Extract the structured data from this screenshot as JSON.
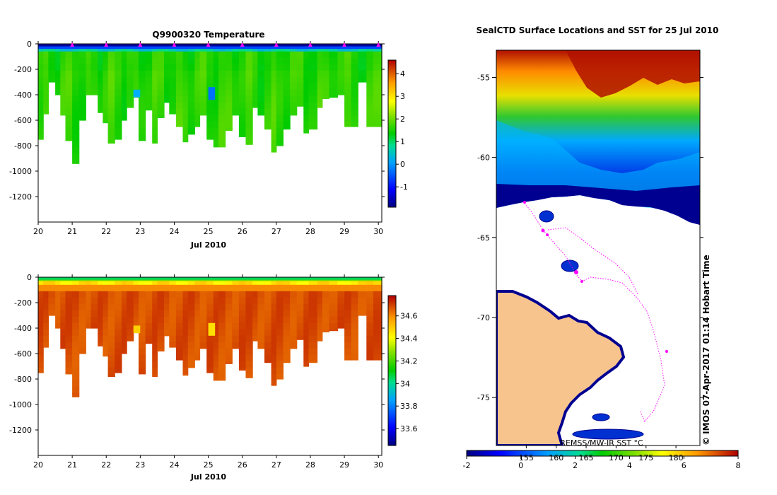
{
  "chart_data": [
    {
      "type": "heatmap",
      "title": "Q9900320  Temperature",
      "xlabel": "Jul 2010",
      "xticks": [
        "20",
        "21",
        "22",
        "23",
        "24",
        "25",
        "26",
        "27",
        "28",
        "29",
        "30"
      ],
      "xlim": [
        20,
        30.1
      ],
      "ylim": [
        -1400,
        0
      ],
      "yticks": [
        "0",
        "-200",
        "-400",
        "-600",
        "-800",
        "-1000",
        "-1200"
      ],
      "colorbar": {
        "ticks": [
          "4",
          "3",
          "2",
          "1",
          "0",
          "-1"
        ],
        "vmin": -1.9,
        "vmax": 4.6
      },
      "surface_marker_times": [
        21,
        22,
        23,
        24,
        25,
        26,
        27,
        28,
        29,
        30
      ],
      "profile_times": [
        20,
        20.15,
        20.3,
        20.5,
        20.65,
        20.8,
        21,
        21.2,
        21.4,
        21.55,
        21.75,
        21.9,
        22.05,
        22.25,
        22.45,
        22.6,
        22.8,
        22.95,
        23.15,
        23.35,
        23.5,
        23.7,
        23.85,
        24.05,
        24.25,
        24.4,
        24.6,
        24.75,
        24.95,
        25.15,
        25.3,
        25.5,
        25.7,
        25.9,
        26.1,
        26.3,
        26.45,
        26.65,
        26.85,
        27,
        27.2,
        27.4,
        27.6,
        27.8,
        27.95,
        28.2,
        28.35,
        28.55,
        28.8,
        29,
        29.2,
        29.4,
        29.65,
        29.85
      ],
      "profile_max_depth": [
        750,
        550,
        300,
        400,
        560,
        760,
        940,
        600,
        400,
        400,
        540,
        620,
        780,
        750,
        600,
        500,
        420,
        760,
        520,
        780,
        580,
        460,
        550,
        650,
        770,
        710,
        650,
        560,
        750,
        810,
        810,
        680,
        560,
        730,
        790,
        500,
        560,
        670,
        850,
        800,
        670,
        560,
        490,
        700,
        670,
        500,
        430,
        420,
        400,
        650,
        650,
        300,
        650,
        650
      ]
    },
    {
      "type": "heatmap",
      "title": "",
      "xlabel": "Jul 2010",
      "xticks": [
        "20",
        "21",
        "22",
        "23",
        "24",
        "25",
        "26",
        "27",
        "28",
        "29",
        "30"
      ],
      "xlim": [
        20,
        30.1
      ],
      "ylim": [
        -1400,
        0
      ],
      "yticks": [
        "0",
        "-200",
        "-400",
        "-600",
        "-800",
        "-1000",
        "-1200"
      ],
      "colorbar": {
        "ticks": [
          "34.6",
          "34.4",
          "34.2",
          "34",
          "33.8",
          "33.6"
        ],
        "vmin": 33.45,
        "vmax": 34.78
      }
    },
    {
      "type": "map",
      "title": "SealCTD Surface Locations and SST for 25 Jul 2010",
      "yticks": [
        "-55",
        "-60",
        "-65",
        "-70",
        "-75"
      ],
      "lat_range": [
        -53.3,
        -78
      ],
      "lon_range": [
        150,
        184
      ],
      "colorbar_label": "REMSS/MW-IR SST °C",
      "colorbar_ticks": [
        "-2",
        "0",
        "2",
        "4",
        "6",
        "8"
      ],
      "colorbar_lon_ticks": [
        "155",
        "160",
        "165",
        "170",
        "175",
        "180"
      ],
      "sst_range": [
        -2,
        8
      ],
      "credit": "©  IMOS 07-Apr-2017 01:14 Hobart Time"
    }
  ]
}
